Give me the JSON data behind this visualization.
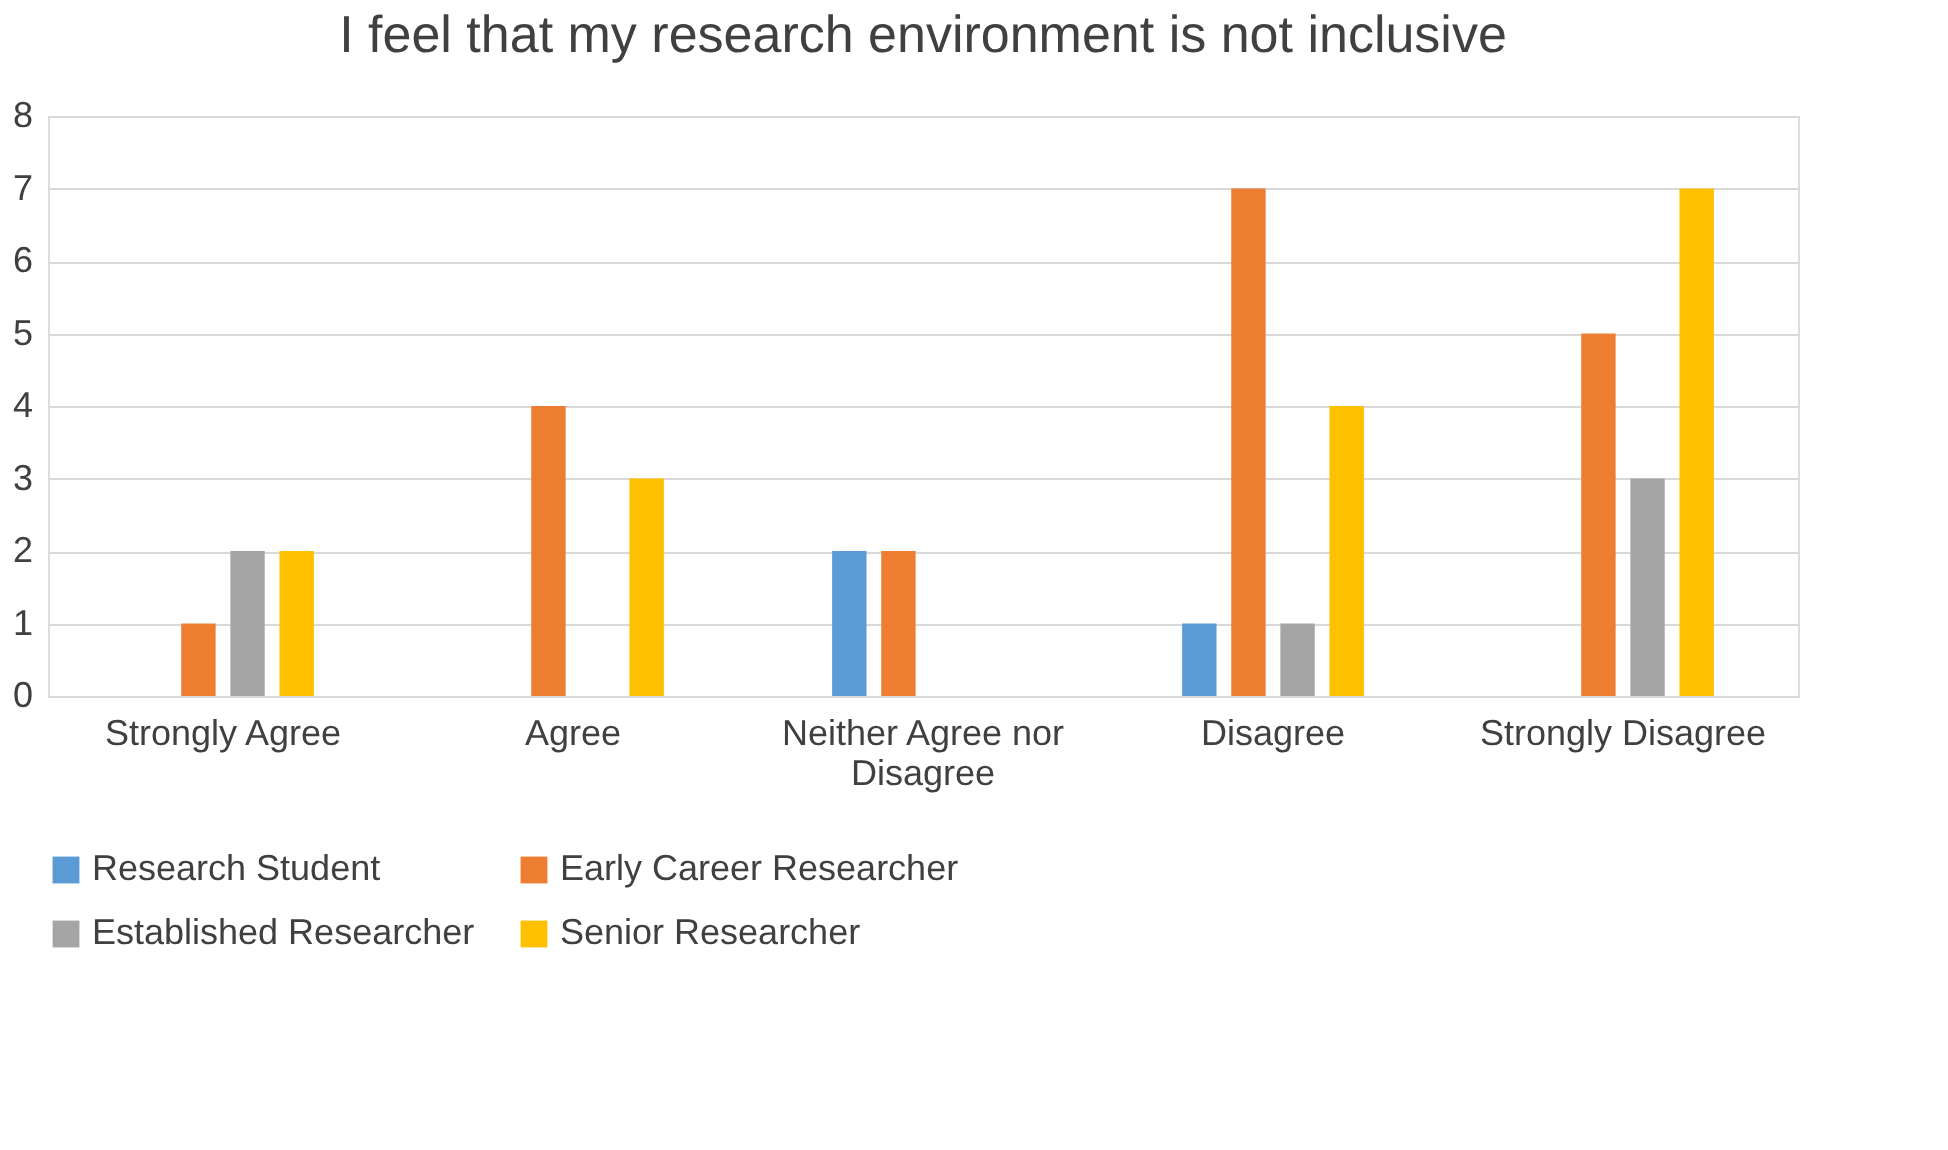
{
  "chart_data": {
    "type": "bar",
    "title": "I feel that my research environment is not inclusive",
    "categories": [
      "Strongly Agree",
      "Agree",
      "Neither Agree nor Disagree",
      "Disagree",
      "Strongly Disagree"
    ],
    "series": [
      {
        "name": "Research Student",
        "color": "#5b9bd5",
        "values": [
          0,
          0,
          2,
          1,
          0
        ]
      },
      {
        "name": "Early Career Researcher",
        "color": "#ed7d31",
        "values": [
          1,
          4,
          2,
          7,
          5
        ]
      },
      {
        "name": "Established Researcher",
        "color": "#a5a5a5",
        "values": [
          2,
          0,
          0,
          1,
          3
        ]
      },
      {
        "name": "Senior Researcher",
        "color": "#ffc000",
        "values": [
          2,
          3,
          0,
          4,
          7
        ]
      }
    ],
    "ylim": [
      0,
      8
    ],
    "yticks": [
      0,
      1,
      2,
      3,
      4,
      5,
      6,
      7,
      8
    ],
    "grid": "y",
    "legend": "bottom"
  }
}
